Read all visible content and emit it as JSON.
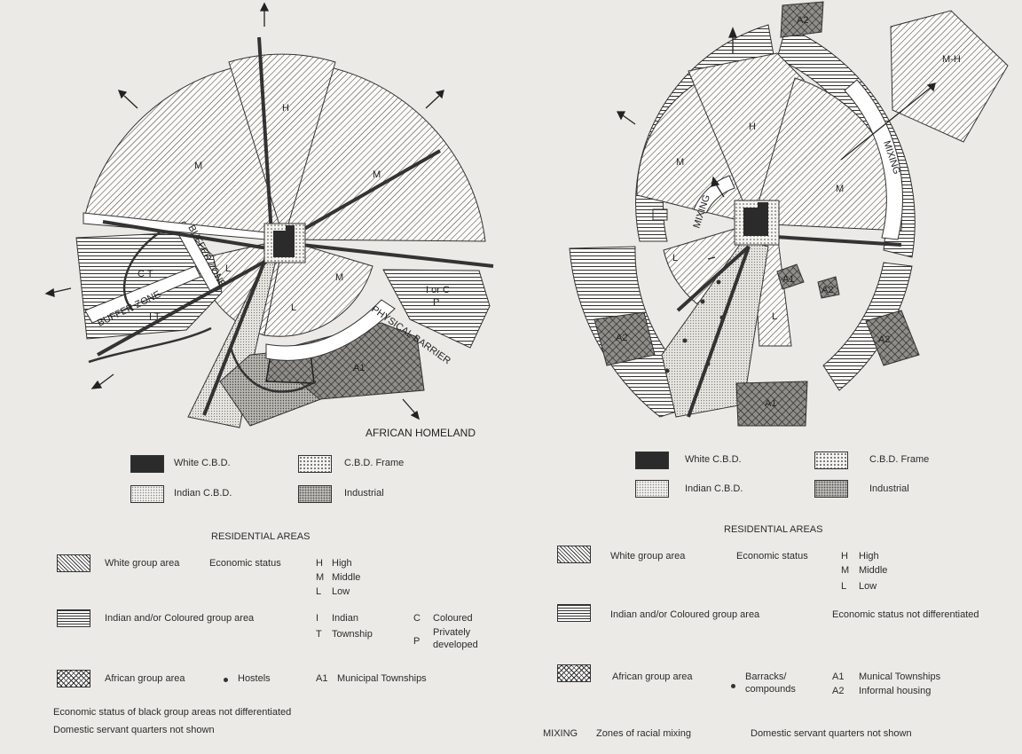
{
  "left": {
    "map_labels": {
      "H": "H",
      "M_left": "M",
      "M_right": "M",
      "M_lower": "M",
      "L_upper": "L",
      "L_lower": "L",
      "CT": "C T",
      "IT": "I T",
      "buffer_zone_1": "BUFFER ZONE",
      "buffer_zone_2": "BUFFER ZONE",
      "physical_barrier": "PHYSICAL BARRIER",
      "i_or_c": "I or C",
      "p": "P",
      "a1": "A1",
      "african_homeland": "AFRICAN HOMELAND"
    },
    "legend": {
      "white_cbd": "White C.B.D.",
      "cbd_frame": "C.B.D. Frame",
      "indian_cbd": "Indian C.B.D.",
      "industrial": "Industrial",
      "residential_heading": "RESIDENTIAL AREAS",
      "white_group": "White group area",
      "economic_status": "Economic status",
      "h_code": "H",
      "h_label": "High",
      "m_code": "M",
      "m_label": "Middle",
      "l_code": "L",
      "l_label": "Low",
      "indian_group": "Indian and/or Coloured group area",
      "i_code": "I",
      "i_label": "Indian",
      "c_code": "C",
      "c_label": "Coloured",
      "t_code": "T",
      "t_label": "Township",
      "p_code": "P",
      "p_label_1": "Privately",
      "p_label_2": "developed",
      "african_group": "African group area",
      "hostels": "Hostels",
      "a1_code": "A1",
      "a1_label": "Municipal Townships",
      "note_1": "Economic status of black group areas not differentiated",
      "note_2": "Domestic servant quarters not shown"
    }
  },
  "right": {
    "map_labels": {
      "a2_top": "A2",
      "mh": "M-H",
      "h": "H",
      "m_left": "M",
      "m_right": "M",
      "mixing_right": "MIXING",
      "mixing_left": "MIXING",
      "l_left": "L",
      "l_lower": "L",
      "a1_small_1": "A1",
      "a2_small": "A2",
      "a2_left": "A2",
      "a2_right": "A2",
      "a1_bottom": "A1"
    },
    "legend": {
      "white_cbd": "White C.B.D.",
      "cbd_frame": "C.B.D. Frame",
      "indian_cbd": "Indian C.B.D.",
      "industrial": "Industrial",
      "residential_heading": "RESIDENTIAL AREAS",
      "white_group": "White group area",
      "economic_status": "Economic status",
      "h_code": "H",
      "h_label": "High",
      "m_code": "M",
      "m_label": "Middle",
      "l_code": "L",
      "l_label": "Low",
      "indian_group": "Indian and/or Coloured group area",
      "not_differentiated": "Economic status not differentiated",
      "african_group": "African group area",
      "barracks_1": "Barracks/",
      "barracks_2": "compounds",
      "a1_code": "A1",
      "a1_label": "Munical Townships",
      "a2_code": "A2",
      "a2_label": "Informal housing",
      "mixing_code": "MIXING",
      "mixing_label": "Zones of racial mixing",
      "note": "Domestic servant quarters not shown"
    }
  }
}
